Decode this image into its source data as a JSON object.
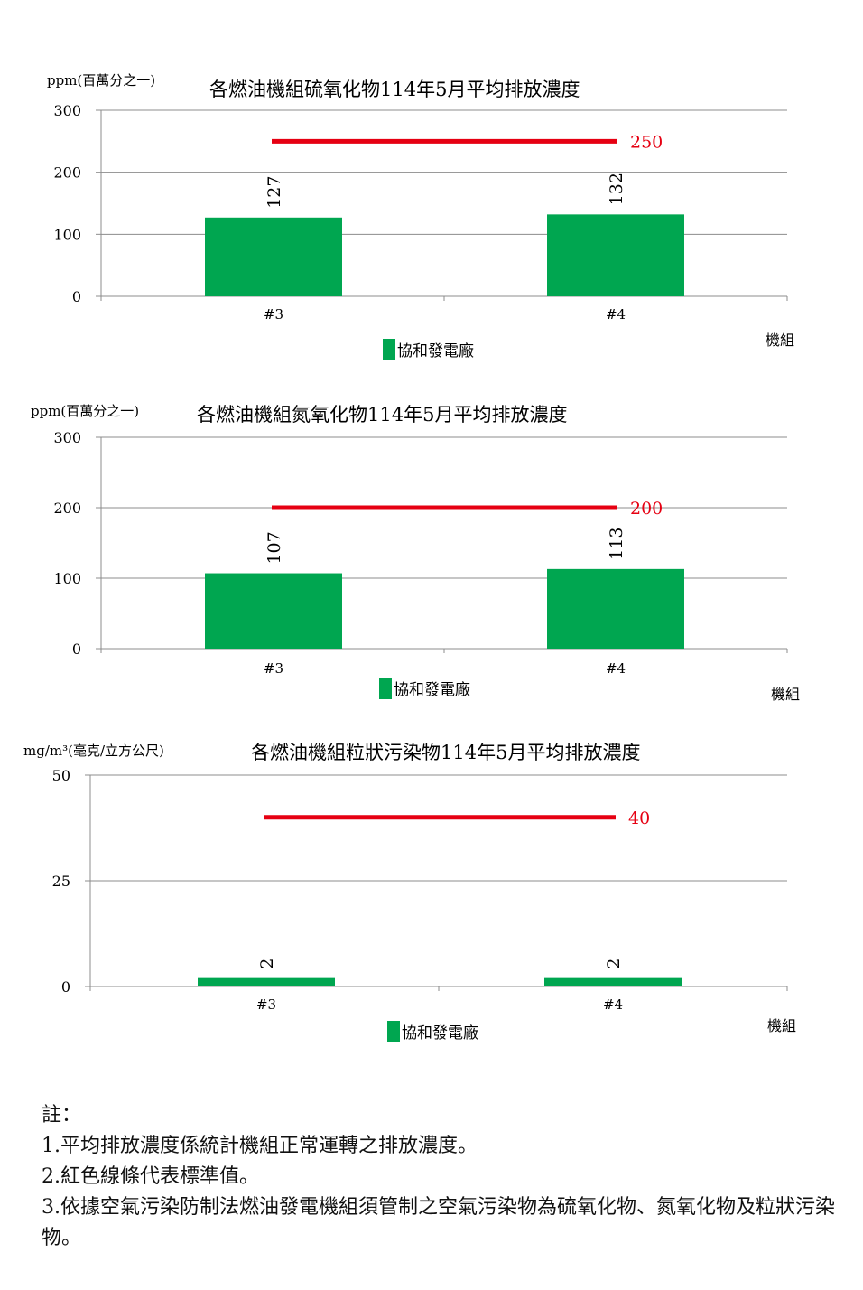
{
  "chart_data": [
    {
      "type": "bar",
      "title": "各燃油機組硫氧化物114年5月平均排放濃度",
      "ylabel": "ppm(百萬分之一)",
      "xlabel": "機組",
      "categories": [
        "#3",
        "#4"
      ],
      "series": [
        {
          "name": "協和發電廠",
          "values": [
            127,
            132
          ],
          "color": "#00a650"
        }
      ],
      "standard": {
        "value": 250,
        "label": "250",
        "color": "#e60012"
      },
      "ylim": [
        0,
        300
      ],
      "yticks": [
        0,
        100,
        200,
        300
      ],
      "grid": true,
      "legend": "bottom"
    },
    {
      "type": "bar",
      "title": "各燃油機組氮氧化物114年5月平均排放濃度",
      "ylabel": "ppm(百萬分之一)",
      "xlabel": "機組",
      "categories": [
        "#3",
        "#4"
      ],
      "series": [
        {
          "name": "協和發電廠",
          "values": [
            107,
            113
          ],
          "color": "#00a650"
        }
      ],
      "standard": {
        "value": 200,
        "label": "200",
        "color": "#e60012"
      },
      "ylim": [
        0,
        300
      ],
      "yticks": [
        0,
        100,
        200,
        300
      ],
      "grid": true,
      "legend": "bottom"
    },
    {
      "type": "bar",
      "title": "各燃油機組粒狀污染物114年5月平均排放濃度",
      "ylabel": "mg/m³(毫克/立方公尺)",
      "xlabel": "機組",
      "categories": [
        "#3",
        "#4"
      ],
      "series": [
        {
          "name": "協和發電廠",
          "values": [
            2,
            2
          ],
          "color": "#00a650"
        }
      ],
      "standard": {
        "value": 40,
        "label": "40",
        "color": "#e60012"
      },
      "ylim": [
        0,
        50
      ],
      "yticks": [
        0,
        25,
        50
      ],
      "grid": true,
      "legend": "bottom"
    }
  ],
  "notes": {
    "heading": "註：",
    "items": [
      "1.平均排放濃度係統計機組正常運轉之排放濃度。",
      "2.紅色線條代表標準值。",
      "3.依據空氣污染防制法燃油發電機組須管制之空氣污染物為硫氧化物、氮氧化物及粒狀污染物。"
    ]
  }
}
